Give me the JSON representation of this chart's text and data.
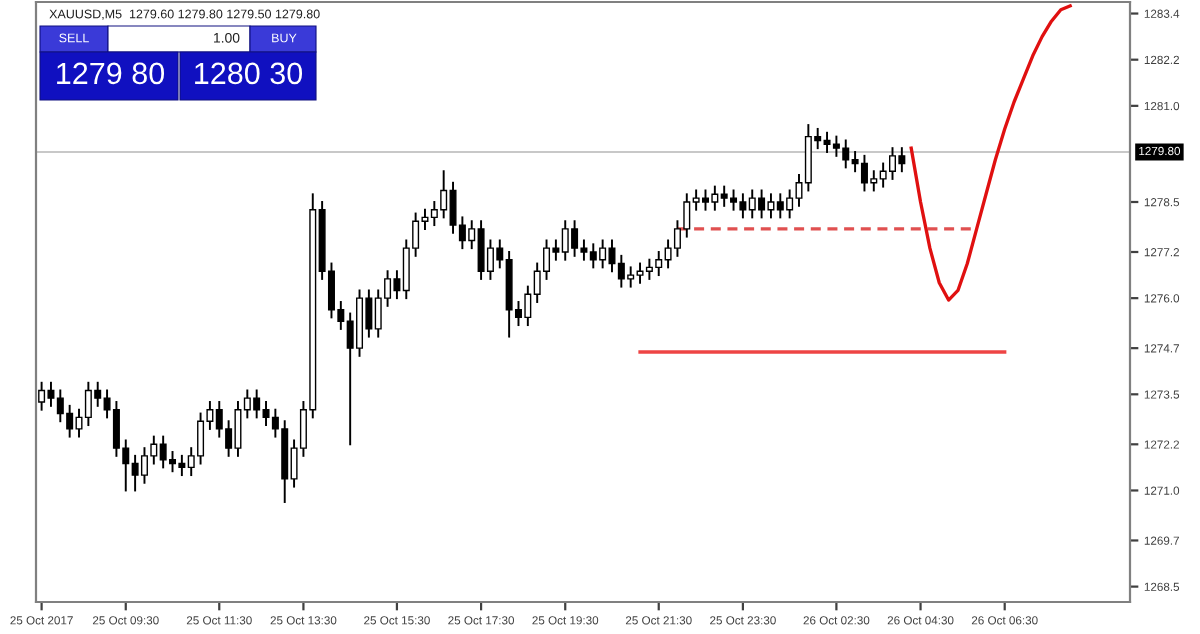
{
  "chart_data": {
    "type": "candlestick",
    "title": "XAUUSD,M5  1279.60 1279.80 1279.50 1279.80",
    "annotations": [
      "SELL",
      "1.00",
      "BUY",
      "1279 80",
      "1280 30"
    ],
    "color": "#000000",
    "categories": [
      "25 Oct 2017",
      null,
      null,
      null,
      null,
      null,
      null,
      null,
      null,
      "25 Oct 09:30",
      null,
      null,
      null,
      null,
      null,
      null,
      null,
      null,
      null,
      "25 Oct 11:30",
      null,
      null,
      null,
      null,
      null,
      null,
      null,
      null,
      "25 Oct 13:30",
      null,
      null,
      null,
      null,
      null,
      null,
      null,
      null,
      null,
      "25 Oct 15:30",
      null,
      null,
      null,
      null,
      null,
      null,
      null,
      null,
      "25 Oct 17:30",
      null,
      null,
      null,
      null,
      null,
      null,
      null,
      null,
      "25 Oct 19:30",
      null,
      null,
      null,
      null,
      null,
      null,
      null,
      null,
      null,
      "25 Oct 21:30",
      null,
      null,
      null,
      null,
      null,
      null,
      null,
      null,
      "25 Oct 23:30",
      null,
      null,
      null,
      null,
      null,
      null,
      null,
      null,
      null,
      "26 Oct 02:30",
      null,
      null,
      null,
      null,
      null,
      null,
      null,
      null,
      "26 Oct 04:30",
      null,
      null,
      null,
      null,
      null,
      null,
      null,
      null,
      "26 Oct 06:30",
      null,
      null,
      null,
      null,
      null,
      null,
      null,
      null,
      null,
      null,
      null,
      null,
      null
    ],
    "ohlc": [
      [
        1273.3,
        1273.8,
        1273.1,
        1273.6
      ],
      [
        1273.6,
        1273.8,
        1273.2,
        1273.4
      ],
      [
        1273.4,
        1273.6,
        1272.8,
        1273.0
      ],
      [
        1273.0,
        1273.2,
        1272.4,
        1272.6
      ],
      [
        1272.6,
        1273.1,
        1272.4,
        1272.9
      ],
      [
        1272.9,
        1273.8,
        1272.7,
        1273.6
      ],
      [
        1273.6,
        1273.8,
        1273.2,
        1273.4
      ],
      [
        1273.4,
        1273.6,
        1272.9,
        1273.1
      ],
      [
        1273.1,
        1273.3,
        1271.9,
        1272.1
      ],
      [
        1272.1,
        1272.3,
        1271.0,
        1271.7
      ],
      [
        1271.7,
        1271.9,
        1271.0,
        1271.4
      ],
      [
        1271.4,
        1272.1,
        1271.2,
        1271.9
      ],
      [
        1271.9,
        1272.4,
        1271.7,
        1272.2
      ],
      [
        1272.2,
        1272.4,
        1271.6,
        1271.8
      ],
      [
        1271.8,
        1272.0,
        1271.5,
        1271.7
      ],
      [
        1271.7,
        1271.9,
        1271.4,
        1271.6
      ],
      [
        1271.6,
        1272.1,
        1271.4,
        1271.9
      ],
      [
        1271.9,
        1273.0,
        1271.7,
        1272.8
      ],
      [
        1272.8,
        1273.3,
        1272.6,
        1273.1
      ],
      [
        1273.1,
        1273.3,
        1272.4,
        1272.6
      ],
      [
        1272.6,
        1272.8,
        1271.9,
        1272.1
      ],
      [
        1272.1,
        1273.3,
        1271.9,
        1273.1
      ],
      [
        1273.1,
        1273.6,
        1272.9,
        1273.4
      ],
      [
        1273.4,
        1273.6,
        1272.9,
        1273.1
      ],
      [
        1273.1,
        1273.3,
        1272.7,
        1272.9
      ],
      [
        1272.9,
        1273.1,
        1272.4,
        1272.6
      ],
      [
        1272.6,
        1272.8,
        1270.7,
        1271.3
      ],
      [
        1271.3,
        1272.3,
        1271.1,
        1272.1
      ],
      [
        1272.1,
        1273.3,
        1271.9,
        1273.1
      ],
      [
        1273.1,
        1278.7,
        1272.9,
        1278.3
      ],
      [
        1278.3,
        1278.5,
        1276.5,
        1276.7
      ],
      [
        1276.7,
        1276.9,
        1275.5,
        1275.7
      ],
      [
        1275.7,
        1275.9,
        1275.2,
        1275.4
      ],
      [
        1275.4,
        1275.6,
        1272.2,
        1274.7
      ],
      [
        1274.7,
        1276.2,
        1274.5,
        1276.0
      ],
      [
        1276.0,
        1276.2,
        1275.0,
        1275.2
      ],
      [
        1275.2,
        1276.2,
        1275.0,
        1276.0
      ],
      [
        1276.0,
        1276.7,
        1275.8,
        1276.5
      ],
      [
        1276.5,
        1276.7,
        1276.0,
        1276.2
      ],
      [
        1276.2,
        1277.5,
        1276.0,
        1277.3
      ],
      [
        1277.3,
        1278.2,
        1277.1,
        1278.0
      ],
      [
        1278.0,
        1278.3,
        1277.8,
        1278.1
      ],
      [
        1278.1,
        1278.5,
        1277.9,
        1278.3
      ],
      [
        1278.3,
        1279.3,
        1278.1,
        1278.8
      ],
      [
        1278.8,
        1279.0,
        1277.7,
        1277.9
      ],
      [
        1277.9,
        1278.1,
        1277.3,
        1277.5
      ],
      [
        1277.5,
        1278.0,
        1277.3,
        1277.8
      ],
      [
        1277.8,
        1278.0,
        1276.5,
        1276.7
      ],
      [
        1276.7,
        1277.5,
        1276.5,
        1277.3
      ],
      [
        1277.3,
        1277.5,
        1276.8,
        1277.0
      ],
      [
        1277.0,
        1277.2,
        1275.0,
        1275.7
      ],
      [
        1275.7,
        1275.9,
        1275.3,
        1275.5
      ],
      [
        1275.5,
        1276.3,
        1275.3,
        1276.1
      ],
      [
        1276.1,
        1276.9,
        1275.9,
        1276.7
      ],
      [
        1276.7,
        1277.5,
        1276.5,
        1277.3
      ],
      [
        1277.3,
        1277.5,
        1277.0,
        1277.2
      ],
      [
        1277.2,
        1278.0,
        1277.0,
        1277.8
      ],
      [
        1277.8,
        1278.0,
        1277.1,
        1277.3
      ],
      [
        1277.3,
        1277.5,
        1277.0,
        1277.2
      ],
      [
        1277.2,
        1277.4,
        1276.8,
        1277.0
      ],
      [
        1277.0,
        1277.5,
        1276.8,
        1277.3
      ],
      [
        1277.3,
        1277.5,
        1276.7,
        1276.9
      ],
      [
        1276.9,
        1277.1,
        1276.3,
        1276.5
      ],
      [
        1276.5,
        1276.8,
        1276.3,
        1276.6
      ],
      [
        1276.6,
        1276.9,
        1276.4,
        1276.7
      ],
      [
        1276.7,
        1277.0,
        1276.5,
        1276.8
      ],
      [
        1276.8,
        1277.2,
        1276.6,
        1277.0
      ],
      [
        1277.0,
        1277.5,
        1276.8,
        1277.3
      ],
      [
        1277.3,
        1278.0,
        1277.1,
        1277.8
      ],
      [
        1277.8,
        1278.7,
        1277.6,
        1278.5
      ],
      [
        1278.5,
        1278.8,
        1278.3,
        1278.6
      ],
      [
        1278.6,
        1278.8,
        1278.3,
        1278.5
      ],
      [
        1278.5,
        1278.9,
        1278.3,
        1278.7
      ],
      [
        1278.7,
        1278.9,
        1278.4,
        1278.6
      ],
      [
        1278.6,
        1278.8,
        1278.3,
        1278.5
      ],
      [
        1278.5,
        1278.7,
        1278.1,
        1278.3
      ],
      [
        1278.3,
        1278.8,
        1278.1,
        1278.6
      ],
      [
        1278.6,
        1278.8,
        1278.1,
        1278.3
      ],
      [
        1278.3,
        1278.7,
        1278.1,
        1278.5
      ],
      [
        1278.5,
        1278.7,
        1278.1,
        1278.3
      ],
      [
        1278.3,
        1278.8,
        1278.1,
        1278.6
      ],
      [
        1278.6,
        1279.2,
        1278.4,
        1279.0
      ],
      [
        1279.0,
        1280.5,
        1278.8,
        1280.2
      ],
      [
        1280.2,
        1280.4,
        1279.9,
        1280.1
      ],
      [
        1280.1,
        1280.3,
        1279.8,
        1280.0
      ],
      [
        1280.0,
        1280.2,
        1279.7,
        1279.9
      ],
      [
        1279.9,
        1280.1,
        1279.4,
        1279.6
      ],
      [
        1279.6,
        1279.8,
        1279.3,
        1279.5
      ],
      [
        1279.5,
        1279.7,
        1278.8,
        1279.0
      ],
      [
        1279.0,
        1279.3,
        1278.8,
        1279.1
      ],
      [
        1279.1,
        1279.5,
        1278.9,
        1279.3
      ],
      [
        1279.3,
        1279.9,
        1279.1,
        1279.7
      ],
      [
        1279.7,
        1279.9,
        1279.3,
        1279.5
      ],
      null,
      null,
      null,
      null,
      null,
      null,
      null,
      null,
      null,
      null,
      null,
      null,
      null,
      null,
      null,
      null,
      null,
      null,
      null,
      null,
      null,
      null,
      null,
      null
    ],
    "series": [
      {
        "type": "line",
        "color": "#e05050",
        "line_style": "dashed",
        "values": [
          null,
          null,
          null,
          null,
          null,
          null,
          null,
          null,
          null,
          null,
          null,
          null,
          null,
          null,
          null,
          null,
          null,
          null,
          null,
          null,
          null,
          null,
          null,
          null,
          null,
          null,
          null,
          null,
          null,
          null,
          null,
          null,
          null,
          null,
          null,
          null,
          null,
          null,
          null,
          null,
          null,
          null,
          null,
          null,
          null,
          null,
          null,
          null,
          null,
          null,
          null,
          null,
          null,
          null,
          null,
          null,
          null,
          null,
          null,
          null,
          null,
          null,
          null,
          null,
          null,
          null,
          null,
          null,
          1277.8,
          1277.8,
          1277.8,
          1277.8,
          1277.8,
          1277.8,
          1277.8,
          1277.8,
          1277.8,
          1277.8,
          1277.8,
          1277.8,
          1277.8,
          1277.8,
          1277.8,
          1277.8,
          1277.8,
          1277.8,
          1277.8,
          1277.8,
          1277.8,
          1277.8,
          1277.8,
          1277.8,
          1277.8,
          1277.8,
          1277.8,
          1277.8,
          1277.8,
          1277.8,
          1277.8,
          1277.8,
          1277.8,
          null,
          null,
          null,
          null,
          null,
          null,
          null,
          null,
          null,
          null,
          null,
          null,
          null,
          null,
          null,
          null
        ]
      },
      {
        "type": "line",
        "color": "#ee4444",
        "line_style": "solid",
        "values": [
          null,
          null,
          null,
          null,
          null,
          null,
          null,
          null,
          null,
          null,
          null,
          null,
          null,
          null,
          null,
          null,
          null,
          null,
          null,
          null,
          null,
          null,
          null,
          null,
          null,
          null,
          null,
          null,
          null,
          null,
          null,
          null,
          null,
          null,
          null,
          null,
          null,
          null,
          null,
          null,
          null,
          null,
          null,
          null,
          null,
          null,
          null,
          null,
          null,
          null,
          null,
          null,
          null,
          null,
          null,
          null,
          null,
          null,
          null,
          null,
          null,
          null,
          null,
          null,
          1274.6,
          1274.6,
          1274.6,
          1274.6,
          1274.6,
          1274.6,
          1274.6,
          1274.6,
          1274.6,
          1274.6,
          1274.6,
          1274.6,
          1274.6,
          1274.6,
          1274.6,
          1274.6,
          1274.6,
          1274.6,
          1274.6,
          1274.6,
          1274.6,
          1274.6,
          1274.6,
          1274.6,
          1274.6,
          1274.6,
          1274.6,
          1274.6,
          1274.6,
          1274.6,
          1274.6,
          1274.6,
          1274.6,
          1274.6,
          1274.6,
          1274.6,
          1274.6,
          1274.6,
          1274.6,
          1274.6,
          null,
          null,
          null,
          null,
          null,
          null,
          null,
          null,
          null,
          null,
          null,
          null,
          null
        ]
      },
      {
        "type": "line",
        "color": "#e01010",
        "line_style": "solid",
        "values": [
          null,
          null,
          null,
          null,
          null,
          null,
          null,
          null,
          null,
          null,
          null,
          null,
          null,
          null,
          null,
          null,
          null,
          null,
          null,
          null,
          null,
          null,
          null,
          null,
          null,
          null,
          null,
          null,
          null,
          null,
          null,
          null,
          null,
          null,
          null,
          null,
          null,
          null,
          null,
          null,
          null,
          null,
          null,
          null,
          null,
          null,
          null,
          null,
          null,
          null,
          null,
          null,
          null,
          null,
          null,
          null,
          null,
          null,
          null,
          null,
          null,
          null,
          null,
          null,
          null,
          null,
          null,
          null,
          null,
          null,
          null,
          null,
          null,
          null,
          null,
          null,
          null,
          null,
          null,
          null,
          null,
          null,
          null,
          null,
          null,
          null,
          null,
          null,
          null,
          null,
          null,
          null,
          null,
          1279.9,
          1278.5,
          1277.3,
          1276.4,
          1275.95,
          1276.2,
          1276.9,
          1277.8,
          1278.7,
          1279.6,
          1280.4,
          1281.1,
          1281.7,
          1282.3,
          1282.8,
          1283.2,
          1283.5,
          1283.6,
          null,
          null,
          null,
          null,
          null,
          null
        ]
      }
    ],
    "ref_lines": [
      {
        "axis": "y",
        "value": 1279.8,
        "label": "1279.80",
        "color": "#c8c8c8"
      }
    ],
    "ylim": [
      1268.1,
      1283.7
    ],
    "yticks": [
      1268.5,
      1269.7,
      {
        "value": 1271.0,
        "label": "1271.0"
      },
      1272.2,
      1273.5,
      1274.7,
      {
        "value": 1276.0,
        "label": "1276.0"
      },
      1277.2,
      1278.5,
      {
        "value": 1281.0,
        "label": "1281.0"
      },
      1282.2,
      1283.4
    ],
    "grid": false
  }
}
